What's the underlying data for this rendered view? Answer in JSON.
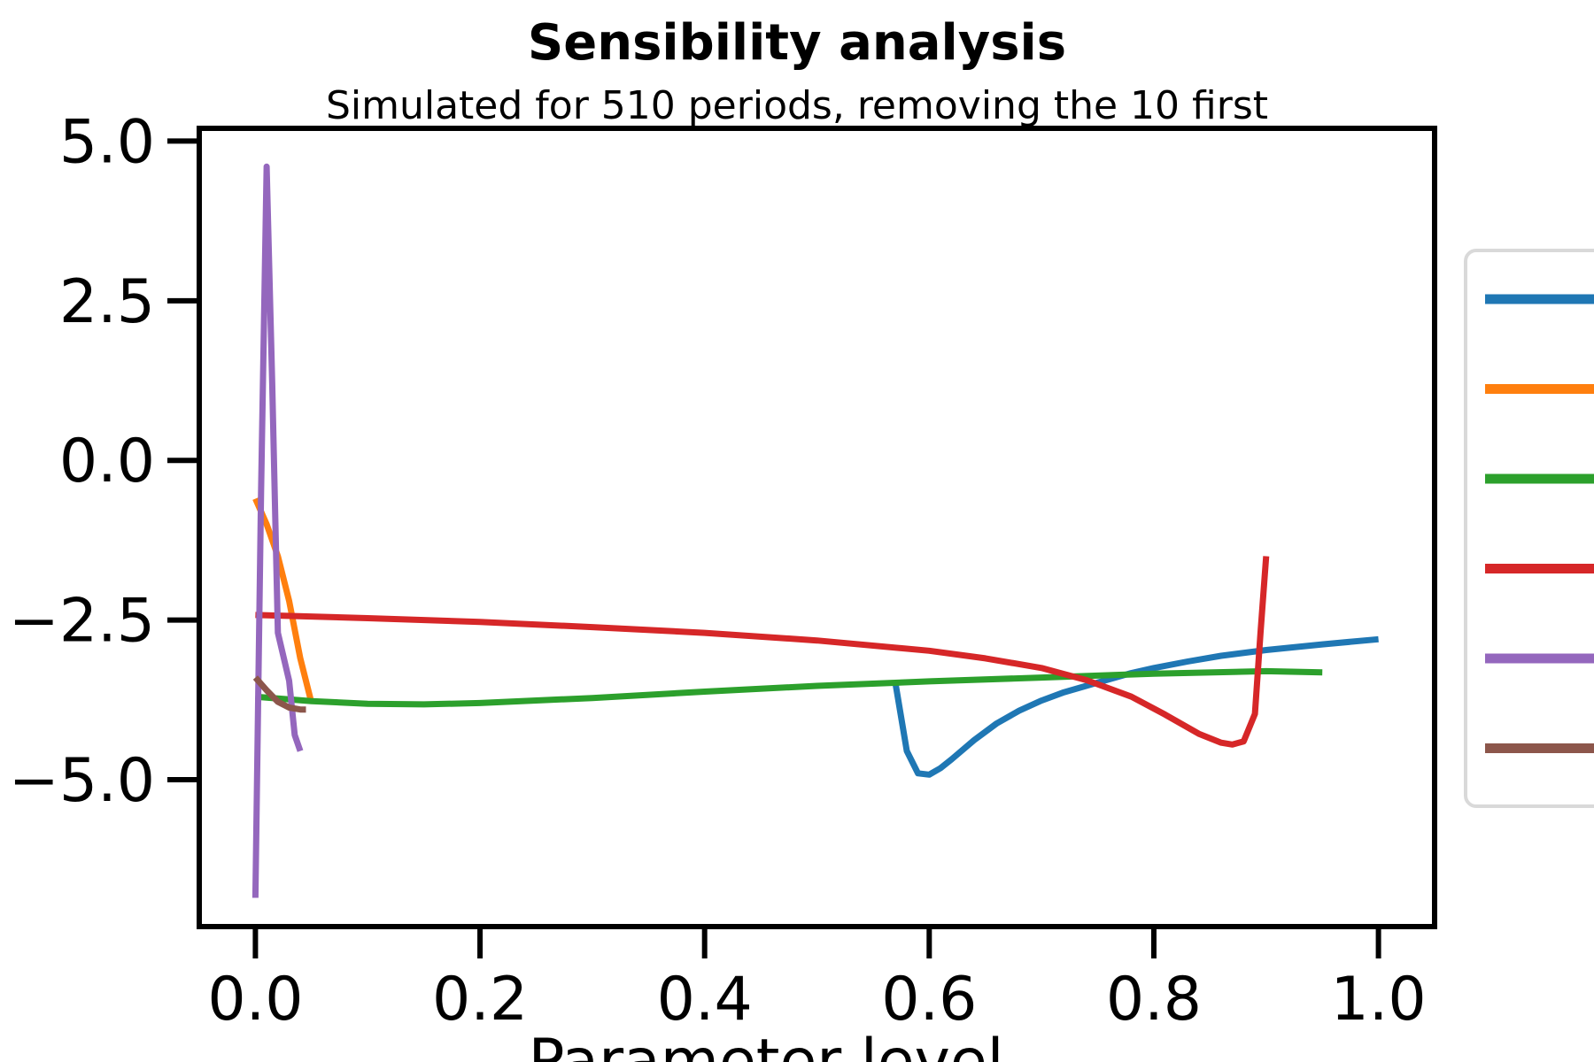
{
  "chart_data": {
    "type": "line",
    "title": "Sensibility analysis",
    "subtitle": "Simulated for 510 periods, removing the 10 first",
    "xlabel": "Parameter level",
    "ylabel": "",
    "xlim": [
      -0.05,
      1.05
    ],
    "ylim": [
      -7.3,
      5.2
    ],
    "xticks": [
      0.0,
      0.2,
      0.4,
      0.6,
      0.8,
      1.0
    ],
    "xtick_labels": [
      "0.0",
      "0.2",
      "0.4",
      "0.6",
      "0.8",
      "1.0"
    ],
    "yticks": [
      5.0,
      2.5,
      0.0,
      -2.5,
      -5.0
    ],
    "ytick_labels": [
      "5.0",
      "2.5",
      "0.0",
      "−2.5",
      "−5.0"
    ],
    "grid": false,
    "legend_position": "right, outside plot (cropped)",
    "series": [
      {
        "color": "#1f77b4",
        "x": [
          0.57,
          0.58,
          0.59,
          0.6,
          0.61,
          0.62,
          0.64,
          0.66,
          0.68,
          0.7,
          0.72,
          0.75,
          0.78,
          0.8,
          0.83,
          0.86,
          0.9,
          0.95,
          1.0
        ],
        "y": [
          -3.5,
          -4.55,
          -4.9,
          -4.92,
          -4.82,
          -4.68,
          -4.38,
          -4.12,
          -3.92,
          -3.76,
          -3.63,
          -3.48,
          -3.33,
          -3.25,
          -3.15,
          -3.06,
          -2.97,
          -2.88,
          -2.8
        ]
      },
      {
        "color": "#ff7f0e",
        "x": [
          0.0,
          0.01,
          0.02,
          0.03,
          0.04,
          0.05
        ],
        "y": [
          -0.6,
          -1.0,
          -1.5,
          -2.2,
          -3.1,
          -3.8
        ]
      },
      {
        "color": "#2ca02c",
        "x": [
          0.0,
          0.05,
          0.1,
          0.15,
          0.2,
          0.3,
          0.4,
          0.5,
          0.6,
          0.7,
          0.8,
          0.9,
          0.95
        ],
        "y": [
          -3.7,
          -3.77,
          -3.81,
          -3.82,
          -3.8,
          -3.72,
          -3.62,
          -3.53,
          -3.46,
          -3.4,
          -3.34,
          -3.3,
          -3.32
        ]
      },
      {
        "color": "#d62728",
        "x": [
          0.0,
          0.1,
          0.2,
          0.3,
          0.4,
          0.5,
          0.6,
          0.65,
          0.7,
          0.74,
          0.78,
          0.81,
          0.84,
          0.86,
          0.87,
          0.88,
          0.89,
          0.895,
          0.9
        ],
        "y": [
          -2.42,
          -2.47,
          -2.53,
          -2.61,
          -2.7,
          -2.82,
          -2.98,
          -3.1,
          -3.25,
          -3.44,
          -3.7,
          -3.98,
          -4.28,
          -4.42,
          -4.45,
          -4.4,
          -3.97,
          -2.7,
          -1.5
        ]
      },
      {
        "color": "#9467bd",
        "x": [
          0.0,
          0.005,
          0.01,
          0.015,
          0.02,
          0.03,
          0.035,
          0.04
        ],
        "y": [
          -6.85,
          -0.5,
          4.6,
          1.2,
          -2.7,
          -3.45,
          -4.3,
          -4.55
        ]
      },
      {
        "color": "#8c564b",
        "x": [
          0.0,
          0.01,
          0.02,
          0.03,
          0.04,
          0.045
        ],
        "y": [
          -3.4,
          -3.6,
          -3.78,
          -3.87,
          -3.9,
          -3.9
        ]
      }
    ]
  }
}
